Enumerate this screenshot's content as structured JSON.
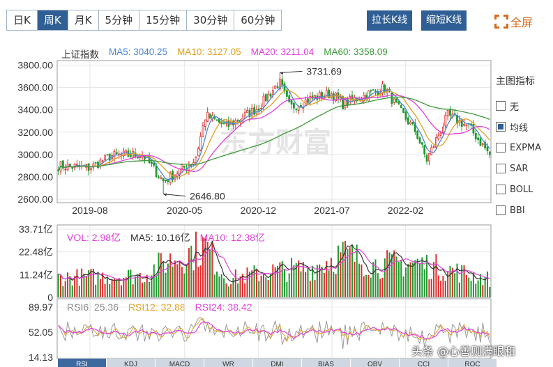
{
  "tabs": [
    "日K",
    "周K",
    "月K",
    "5分钟",
    "15分钟",
    "30分钟",
    "60分钟"
  ],
  "active_tab": 1,
  "buttons": {
    "stretch": "拉长K线",
    "shrink": "缩短K线",
    "fullscreen": "全屏"
  },
  "main_legend": {
    "name": "上证指数",
    "ma5": "MA5: 3040.25",
    "ma10": "MA10: 3127.05",
    "ma20": "MA20: 3211.04",
    "ma60": "MA60: 3358.09"
  },
  "vol_legend": {
    "vol": "VOL: 2.98亿",
    "ma5": "MA5: 10.16亿",
    "ma10": "MA10: 12.38亿"
  },
  "rsi_legend": {
    "rsi6": "RSI6: 25.36",
    "rsi12": "RSI12: 32.88",
    "rsi24": "RSI24: 38.42"
  },
  "side_panel": {
    "title": "主图指标",
    "options": [
      {
        "label": "无",
        "checked": false
      },
      {
        "label": "均线",
        "checked": true
      },
      {
        "label": "EXPMA",
        "checked": false
      },
      {
        "label": "SAR",
        "checked": false
      },
      {
        "label": "BOLL",
        "checked": false
      },
      {
        "label": "BBI",
        "checked": false
      }
    ]
  },
  "indicator_tabs": [
    "RSI",
    "KDJ",
    "MACD",
    "WR",
    "DMI",
    "BIAS",
    "OBV",
    "CCI",
    "ROC"
  ],
  "watermark_center": "东方财富",
  "watermark_corner": "头条 @心善则满眼和",
  "colors": {
    "up": "#e02b2b",
    "down": "#1e9a2e",
    "ma5": "#4f86d9",
    "ma10": "#e0a020",
    "ma20": "#e040d8",
    "ma60": "#3a9a3a",
    "grid": "#e6e6e6",
    "tab_active": "#2f5f95"
  },
  "chart_data": {
    "type": "candlestick",
    "price_axis": {
      "ticks": [
        "3800.00",
        "3600.00",
        "3400.00",
        "3200.00",
        "3000.00",
        "2800.00",
        "2600.00"
      ],
      "ylim": [
        2570,
        3840
      ]
    },
    "x_ticks": [
      "2019-08",
      "2020-05",
      "2020-12",
      "2021-07",
      "2022-02"
    ],
    "annotations": [
      {
        "label": "3731.69",
        "value": 3731.69,
        "date": "2021-02"
      },
      {
        "label": "2646.80",
        "value": 2646.8,
        "date": "2020-03"
      }
    ],
    "close_anchors": [
      {
        "date": "2019-05",
        "close": 2900
      },
      {
        "date": "2019-08",
        "close": 2880
      },
      {
        "date": "2019-10",
        "close": 2990
      },
      {
        "date": "2020-01",
        "close": 3000
      },
      {
        "date": "2020-03",
        "close": 2760
      },
      {
        "date": "2020-06",
        "close": 2950
      },
      {
        "date": "2020-07",
        "close": 3350
      },
      {
        "date": "2020-09",
        "close": 3250
      },
      {
        "date": "2020-12",
        "close": 3420
      },
      {
        "date": "2021-02",
        "close": 3650
      },
      {
        "date": "2021-03",
        "close": 3420
      },
      {
        "date": "2021-05",
        "close": 3500
      },
      {
        "date": "2021-07",
        "close": 3550
      },
      {
        "date": "2021-08",
        "close": 3450
      },
      {
        "date": "2021-12",
        "close": 3600
      },
      {
        "date": "2022-01",
        "close": 3450
      },
      {
        "date": "2022-03",
        "close": 3200
      },
      {
        "date": "2022-04",
        "close": 2950
      },
      {
        "date": "2022-06",
        "close": 3350
      },
      {
        "date": "2022-08",
        "close": 3250
      },
      {
        "date": "2022-10",
        "close": 3000
      }
    ],
    "volume_axis": {
      "ticks": [
        "33.71亿",
        "22.48亿",
        "11.24亿",
        "0"
      ],
      "ylim": [
        0,
        33.71
      ]
    },
    "volume_anchors": [
      {
        "date": "2019-05",
        "value": 11
      },
      {
        "date": "2020-01",
        "value": 12
      },
      {
        "date": "2020-03",
        "value": 19
      },
      {
        "date": "2020-07",
        "value": 28
      },
      {
        "date": "2020-09",
        "value": 10
      },
      {
        "date": "2021-02",
        "value": 15
      },
      {
        "date": "2021-05",
        "value": 16
      },
      {
        "date": "2021-08",
        "value": 24
      },
      {
        "date": "2021-11",
        "value": 18
      },
      {
        "date": "2022-03",
        "value": 19
      },
      {
        "date": "2022-07",
        "value": 14
      },
      {
        "date": "2022-10",
        "value": 10
      }
    ],
    "rsi_axis": {
      "ticks": [
        "89.97",
        "52.05",
        "14.13"
      ],
      "ylim": [
        14.13,
        89.97
      ]
    }
  }
}
